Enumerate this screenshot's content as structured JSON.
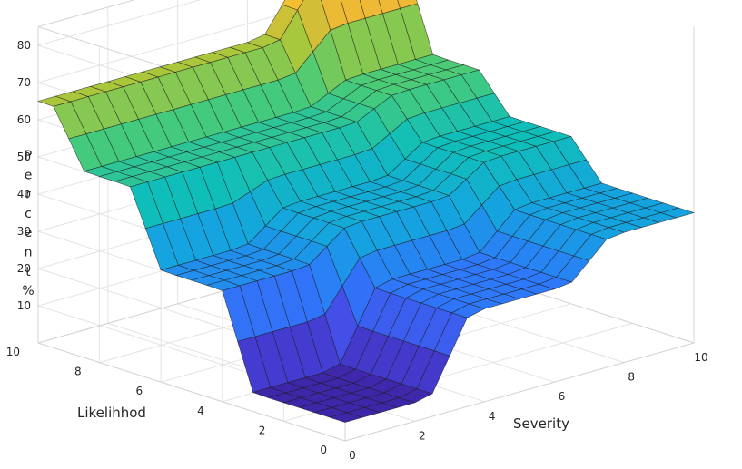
{
  "chart_data": {
    "type": "surface",
    "xlabel": "Severity",
    "ylabel": "Likelihhod",
    "zlabel": "Percent",
    "x_ticks": [
      "0",
      "2",
      "4",
      "6",
      "8",
      "10"
    ],
    "y_ticks": [
      "0",
      "2",
      "4",
      "6",
      "8",
      "10"
    ],
    "z_ticks": [
      "10",
      "20",
      "30",
      "40",
      "50",
      "60",
      "70",
      "80"
    ],
    "xlim": [
      0,
      10
    ],
    "ylim": [
      0,
      10
    ],
    "zlim": [
      0,
      85
    ],
    "grid": true,
    "colormap": "parula",
    "x": [
      0,
      0.5,
      1,
      1.5,
      2,
      2.5,
      3,
      3.5,
      4,
      4.5,
      5,
      5.5,
      6,
      6.5,
      7,
      7.5,
      8,
      8.5,
      9,
      9.5,
      10
    ],
    "y": [
      0,
      0.5,
      1,
      1.5,
      2,
      2.5,
      3,
      3.5,
      4,
      4.5,
      5,
      5.5,
      6,
      6.5,
      7,
      7.5,
      8,
      8.5,
      9,
      9.5,
      10
    ],
    "levels": {
      "severity_low": [
        5,
        30,
        50,
        65
      ],
      "severity_mid": [
        25,
        38,
        50,
        65
      ],
      "severity_high": [
        35,
        45,
        55,
        80
      ]
    },
    "severity_breaks": [
      3,
      7
    ],
    "likelihood_breaks": [
      3.5,
      6.5,
      9
    ]
  }
}
